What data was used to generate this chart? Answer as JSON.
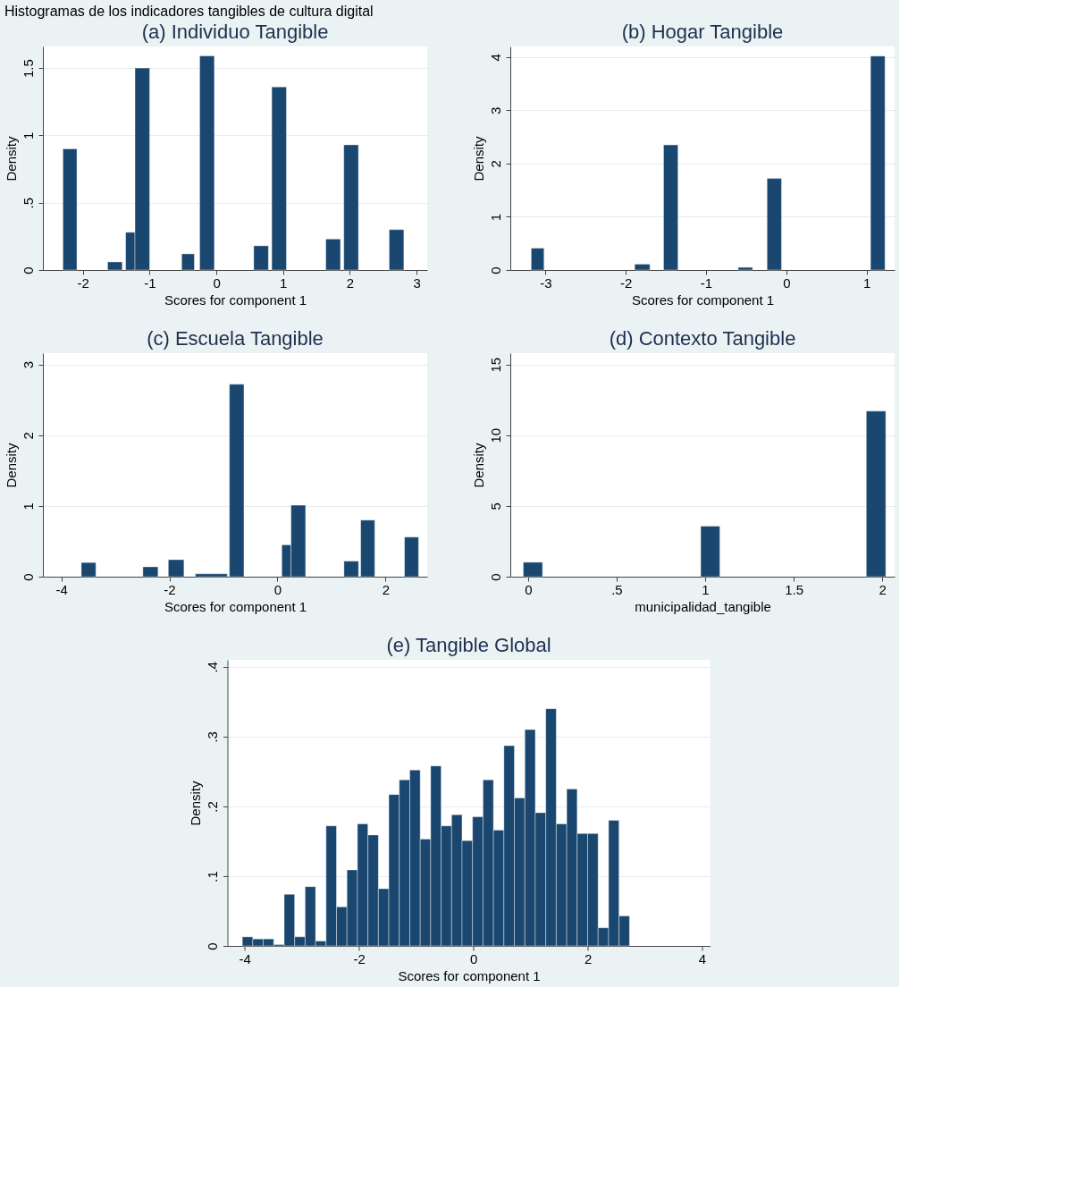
{
  "chart_data": [
    {
      "type": "histogram",
      "title": "(a) Individuo Tangible",
      "xlabel": "Scores for component 1",
      "ylabel": "Density",
      "color": "#1a476f",
      "grid": "y",
      "annotations": [
        "Histogramas de los indicadores tangibles de cultura digital"
      ],
      "bins": [
        -2.3,
        -2.09,
        -1.63,
        -1.41,
        -1.36,
        -1.22,
        -1.0,
        -0.52,
        -0.33,
        -0.25,
        -0.03,
        0.56,
        0.78,
        0.83,
        1.05,
        1.64,
        1.86,
        1.91,
        2.13,
        2.59,
        2.81
      ],
      "values": [
        0.9,
        0,
        0.06,
        0,
        0.28,
        1.5,
        0,
        0.12,
        0,
        1.59,
        0,
        0.18,
        0,
        1.36,
        0,
        0.23,
        0,
        0.93,
        0,
        0.3
      ],
      "xlim": [
        -2.6,
        3.16
      ],
      "ylim": [
        0,
        1.66
      ],
      "xticks": [
        -2,
        -1,
        0,
        1,
        2,
        3
      ],
      "yticks": [
        0,
        {
          "value": 0.5,
          "label": ".5"
        },
        1,
        1.5
      ]
    },
    {
      "type": "histogram",
      "title": "(b) Hogar Tangible",
      "xlabel": "Scores for component 1",
      "ylabel": "Density",
      "color": "#1a476f",
      "grid": "y",
      "bins": [
        -3.18,
        -3.02,
        -1.89,
        -1.7,
        -1.53,
        -1.35,
        -0.6,
        -0.42,
        -0.24,
        -0.06,
        1.05,
        1.23
      ],
      "values": [
        0.41,
        0,
        0.11,
        0,
        2.35,
        0,
        0.05,
        0,
        1.72,
        0,
        4.02
      ],
      "xlim": [
        -3.44,
        1.35
      ],
      "ylim": [
        0,
        4.2
      ],
      "xticks": [
        -3,
        -2,
        -1,
        0,
        1
      ],
      "yticks": [
        0,
        1,
        2,
        3,
        4
      ]
    },
    {
      "type": "histogram",
      "title": "(c) Escuela Tangible",
      "xlabel": "Scores for component 1",
      "ylabel": "Density",
      "color": "#1a476f",
      "grid": "y",
      "bins": [
        -3.63,
        -3.36,
        -2.49,
        -2.21,
        -2.02,
        -1.73,
        -1.52,
        -0.93,
        -0.89,
        -0.62,
        0.08,
        0.25,
        0.52,
        1.23,
        1.5,
        1.54,
        1.8,
        2.35,
        2.61
      ],
      "values": [
        0.2,
        0,
        0.14,
        0,
        0.24,
        0,
        0.04,
        0,
        2.72,
        0,
        0.45,
        1.01,
        0,
        0.22,
        0,
        0.8,
        0,
        0.56
      ],
      "xlim": [
        -4.34,
        2.77
      ],
      "ylim": [
        0,
        3.16
      ],
      "xticks": [
        -4,
        -2,
        0,
        2
      ],
      "yticks": [
        0,
        1,
        2,
        3
      ]
    },
    {
      "type": "histogram",
      "title": "(d) Contexto Tangible",
      "xlabel": "municipalidad_tangible",
      "ylabel": "Density",
      "color": "#1a476f",
      "grid": "y",
      "bins": [
        -0.027,
        0.082,
        0.975,
        1.083,
        1.91,
        2.02
      ],
      "values": [
        1.02,
        0,
        3.57,
        0,
        11.7
      ],
      "xlim": [
        -0.1,
        2.07
      ],
      "ylim": [
        0,
        15.8
      ],
      "xticks": [
        0,
        {
          "value": 0.5,
          "label": ".5"
        },
        1,
        1.5,
        2
      ],
      "yticks": [
        0,
        5,
        10,
        15
      ]
    },
    {
      "type": "histogram",
      "title": "(e) Tangible Global",
      "xlabel": "Scores for component 1",
      "ylabel": "Density",
      "color": "#1a476f",
      "grid": "y",
      "bins": [
        -4.04,
        -3.857,
        -3.674,
        -3.491,
        -3.308,
        -3.125,
        -2.942,
        -2.759,
        -2.576,
        -2.393,
        -2.21,
        -2.027,
        -1.844,
        -1.661,
        -1.478,
        -1.295,
        -1.112,
        -0.929,
        -0.746,
        -0.563,
        -0.38,
        -0.197,
        -0.014,
        0.169,
        0.352,
        0.535,
        0.718,
        0.901,
        1.084,
        1.267,
        1.45,
        1.633,
        1.816,
        1.999,
        2.182,
        2.365,
        2.548,
        2.731
      ],
      "values": [
        0.013,
        0.01,
        0.01,
        0.002,
        0.074,
        0.013,
        0.085,
        0.007,
        0.172,
        0.056,
        0.109,
        0.175,
        0.159,
        0.082,
        0.217,
        0.238,
        0.252,
        0.153,
        0.258,
        0.172,
        0.188,
        0.151,
        0.185,
        0.238,
        0.166,
        0.287,
        0.212,
        0.31,
        0.191,
        0.34,
        0.175,
        0.225,
        0.161,
        0.161,
        0.026,
        0.18,
        0.043
      ],
      "xlim": [
        -4.3,
        4.14
      ],
      "ylim": [
        0,
        0.41
      ],
      "xticks": [
        -4,
        -2,
        0,
        2,
        4
      ],
      "yticks": [
        0,
        {
          "value": 0.1,
          "label": ".1"
        },
        {
          "value": 0.2,
          "label": ".2"
        },
        {
          "value": 0.3,
          "label": ".3"
        },
        {
          "value": 0.4,
          "label": ".4"
        }
      ]
    }
  ]
}
